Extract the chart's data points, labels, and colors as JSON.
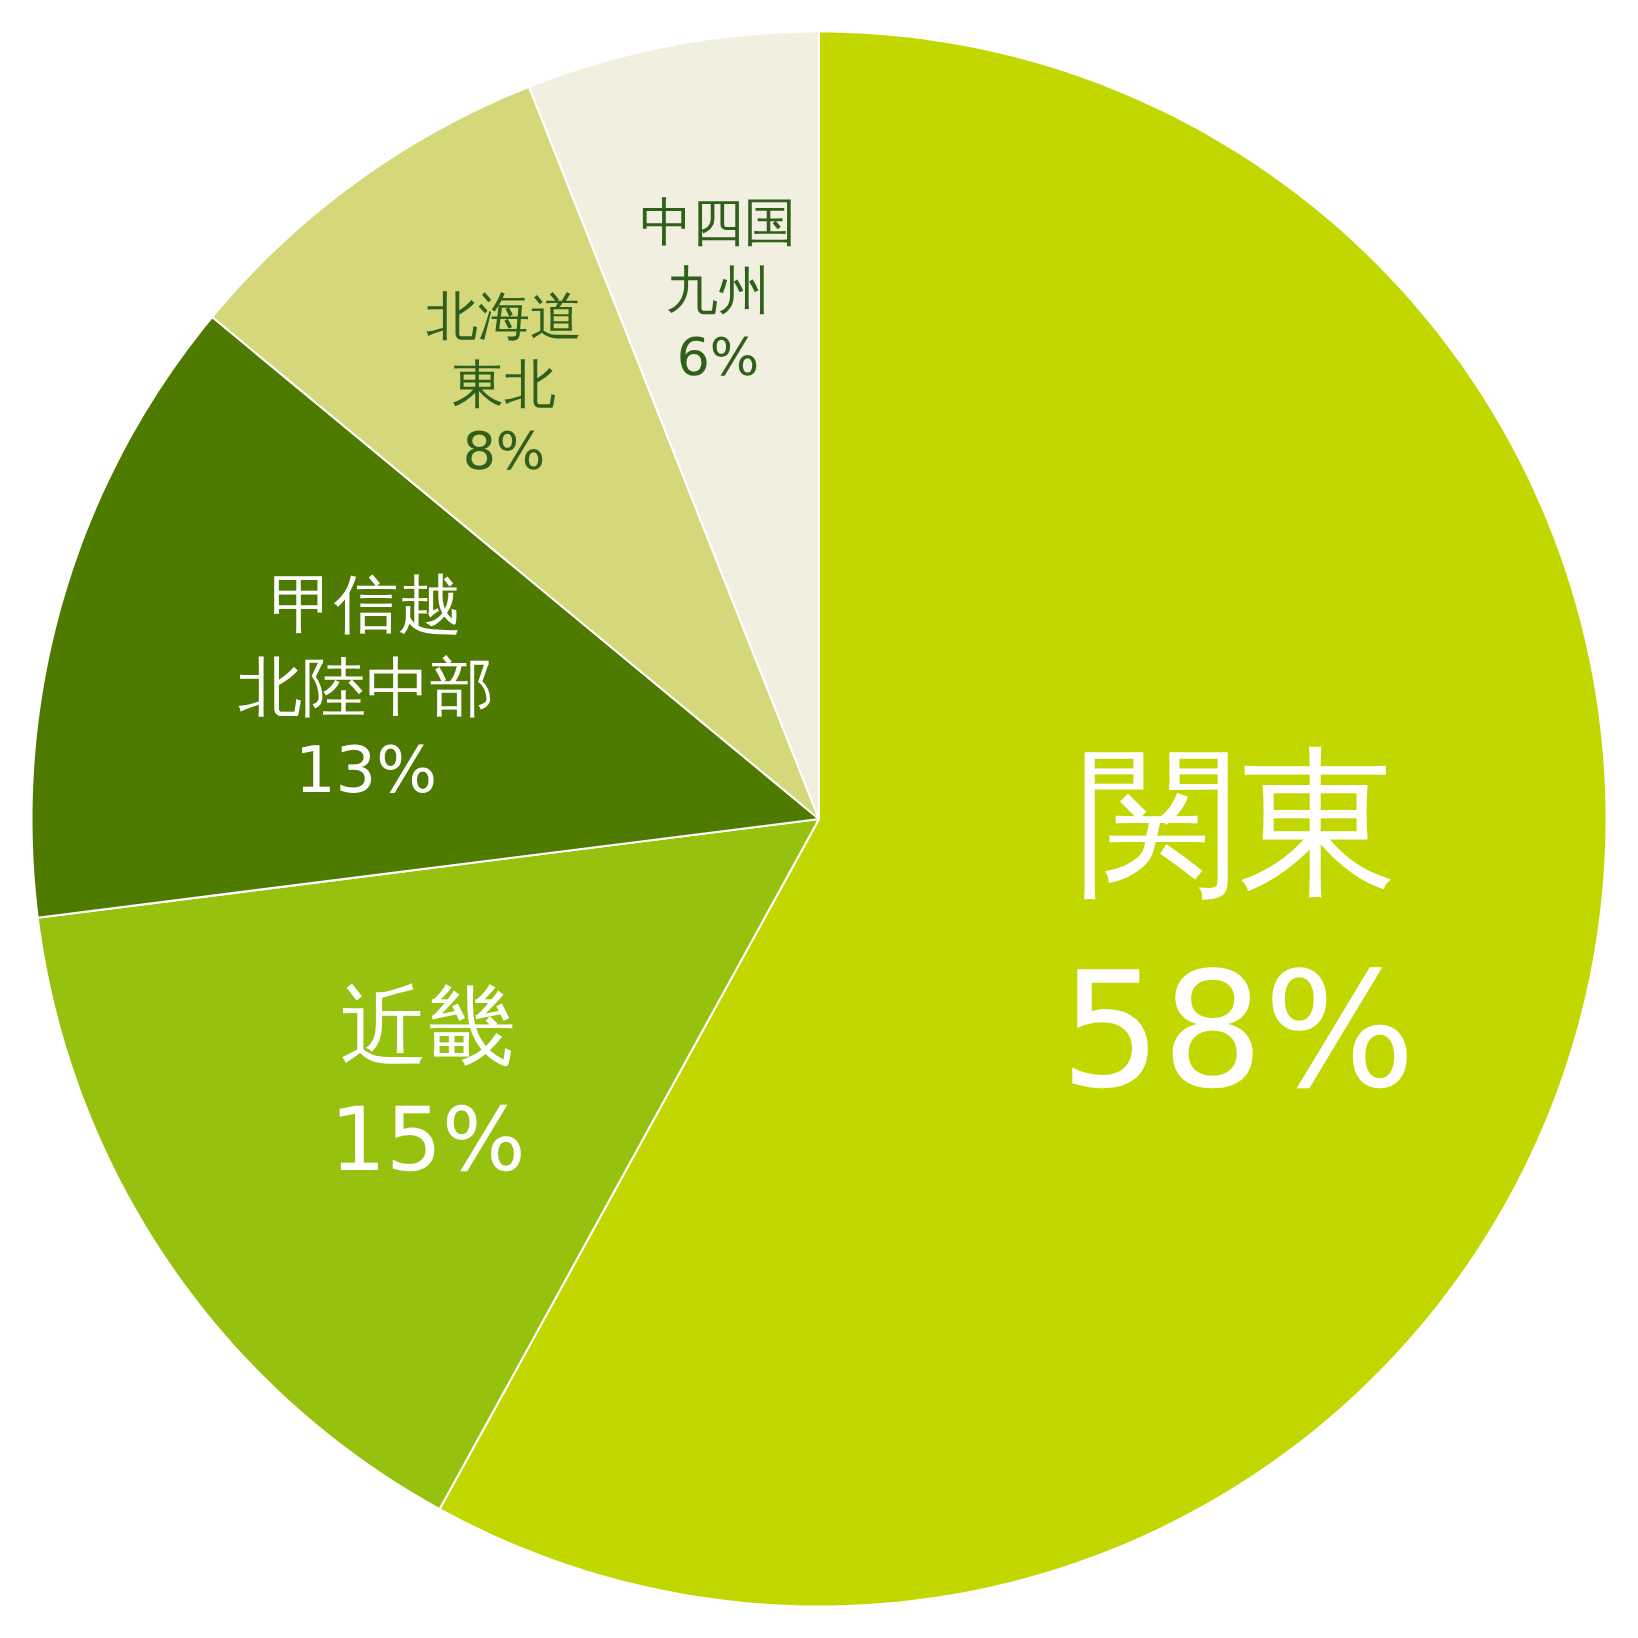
{
  "chart_data": {
    "type": "pie",
    "categories": [
      "関東",
      "近畿",
      "甲信越北陸中部",
      "北海道東北",
      "中四国九州"
    ],
    "values": [
      58,
      15,
      13,
      8,
      6
    ],
    "value_labels": [
      "58%",
      "15%",
      "13%",
      "8%",
      "6%"
    ],
    "colors": [
      "#c2d600",
      "#96c10e",
      "#4e7a00",
      "#d4d87a",
      "#f1efdf"
    ]
  }
}
